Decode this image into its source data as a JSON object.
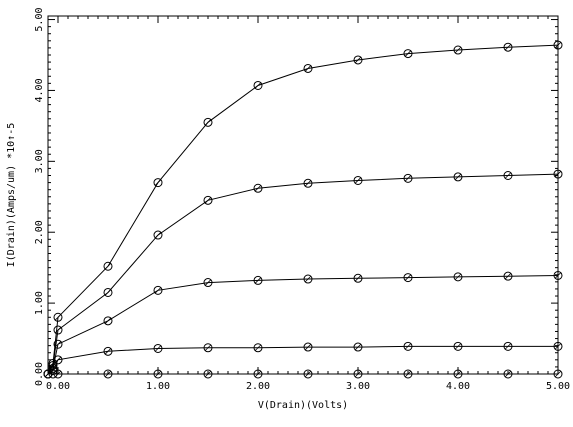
{
  "chart_data": {
    "type": "line",
    "xlabel": "V(Drain)(Volts)",
    "ylabel": "I(Drain)(Amps/um) *10↑-5",
    "xlim": [
      -0.1,
      5.0
    ],
    "ylim": [
      0.0,
      5.05
    ],
    "x_ticks": [
      0.0,
      1.0,
      2.0,
      3.0,
      4.0,
      5.0
    ],
    "x_tick_labels": [
      "0.00",
      "1.00",
      "2.00",
      "3.00",
      "4.00",
      "5.00"
    ],
    "y_ticks": [
      0.0,
      1.0,
      2.0,
      3.0,
      4.0,
      5.0
    ],
    "y_tick_labels": [
      "0.00",
      "1.00",
      "2.00",
      "3.00",
      "4.00",
      "5.00"
    ],
    "grid": false,
    "marker": "circle",
    "x": [
      -0.1,
      -0.05,
      0.0,
      0.5,
      1.0,
      1.5,
      2.0,
      2.5,
      3.0,
      3.5,
      4.0,
      4.5,
      5.0
    ],
    "series": [
      {
        "values": [
          0.0,
          0.15,
          0.8,
          1.52,
          2.7,
          3.55,
          4.07,
          4.31,
          4.43,
          4.52,
          4.57,
          4.61,
          4.64
        ]
      },
      {
        "values": [
          0.0,
          0.12,
          0.62,
          1.15,
          1.96,
          2.45,
          2.62,
          2.69,
          2.73,
          2.76,
          2.78,
          2.8,
          2.82
        ]
      },
      {
        "values": [
          0.0,
          0.08,
          0.42,
          0.75,
          1.18,
          1.29,
          1.32,
          1.34,
          1.35,
          1.36,
          1.37,
          1.38,
          1.39
        ]
      },
      {
        "values": [
          0.0,
          0.05,
          0.2,
          0.32,
          0.36,
          0.37,
          0.37,
          0.38,
          0.38,
          0.39,
          0.39,
          0.39,
          0.39
        ]
      },
      {
        "values": [
          0.0,
          0.0,
          0.0,
          0.0,
          0.0,
          0.0,
          0.0,
          0.0,
          0.0,
          0.0,
          0.0,
          0.0,
          0.0
        ]
      }
    ]
  }
}
